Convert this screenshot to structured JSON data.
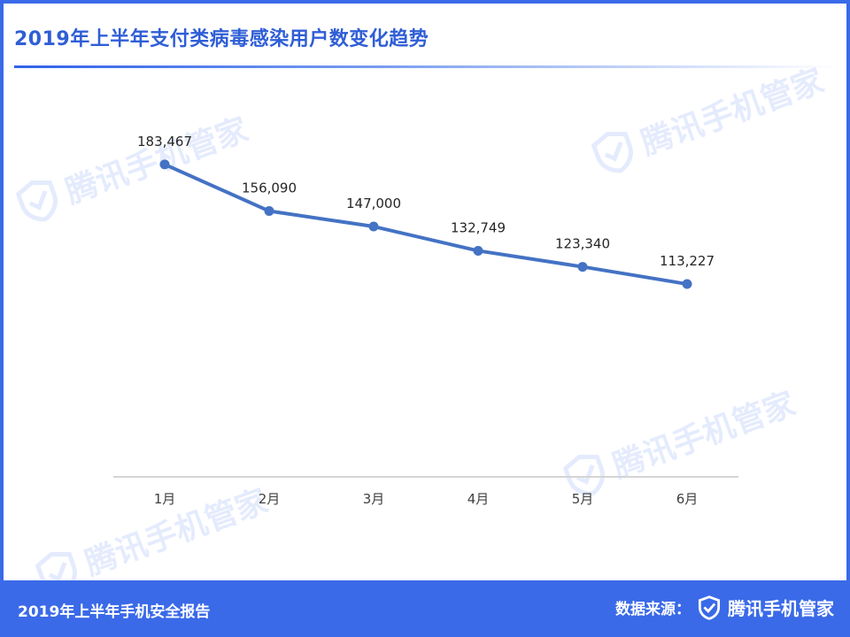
{
  "page": {
    "title": "2019年上半年支付类病毒感染用户数变化趋势"
  },
  "watermark": {
    "text": "腾讯手机管家",
    "icon": "shield-check-icon"
  },
  "footer": {
    "report_name": "2019年上半年手机安全报告",
    "source_label": "数据来源：",
    "source_brand": "腾讯手机管家",
    "source_icon": "shield-check-icon",
    "color": "#3a6ae8"
  },
  "chart_data": {
    "type": "line",
    "title": "2019年上半年支付类病毒感染用户数变化趋势",
    "categories": [
      "1月",
      "2月",
      "3月",
      "4月",
      "5月",
      "6月"
    ],
    "series": [
      {
        "color": "#4472c4",
        "values": [
          183467,
          156090,
          147000,
          132749,
          123340,
          113227
        ],
        "labels": [
          "183,467",
          "156,090",
          "147,000",
          "132,749",
          "123,340",
          "113,227"
        ]
      }
    ],
    "ylim": [
      0,
      200000
    ],
    "grid": false,
    "legend": "none",
    "data_labels": true
  }
}
